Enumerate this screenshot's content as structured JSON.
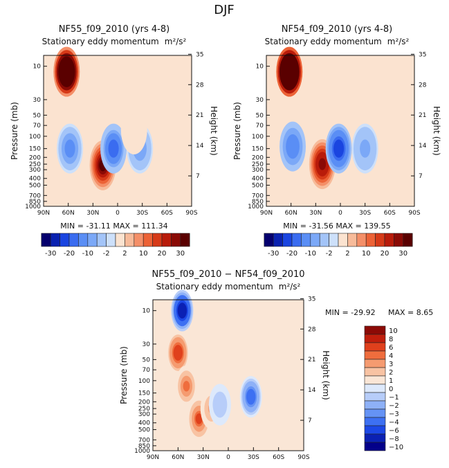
{
  "title": "DJF",
  "chart_data": [
    {
      "type": "heatmap",
      "title": "NF55_f09_2010 (yrs 4-8)",
      "subtitle": "Stationary eddy momentum",
      "units": "m²/s²",
      "xlabel": "",
      "ylabel": "Pressure (mb)",
      "ylabel_right": "Height (km)",
      "x_ticks": [
        "90N",
        "60N",
        "30N",
        "0",
        "30S",
        "60S",
        "90S"
      ],
      "y_ticks": [
        "10",
        "30",
        "50",
        "70",
        "100",
        "150",
        "200",
        "250",
        "300",
        "400",
        "500",
        "700",
        "850",
        "1000"
      ],
      "y_ticks_right": [
        "35",
        "28",
        "21",
        "14",
        "7"
      ],
      "stats": "MIN = -31.11   MAX = 111.34",
      "colorbar_labels": [
        "-30",
        "-20",
        "-10",
        "-2",
        "2",
        "10",
        "20",
        "30"
      ],
      "features": [
        {
          "lat": 62,
          "p": 12,
          "value": 60
        },
        {
          "lat": 18,
          "p": 260,
          "value": 30
        },
        {
          "lat": 5,
          "p": 150,
          "value": -20
        },
        {
          "lat": 58,
          "p": 150,
          "value": -12
        },
        {
          "lat": -27,
          "p": 150,
          "value": -10
        },
        {
          "lat": -20,
          "p": 80,
          "value": 1.5
        }
      ]
    },
    {
      "type": "heatmap",
      "title": "NF54_f09_2010 (yrs 4-8)",
      "subtitle": "Stationary eddy momentum",
      "units": "m²/s²",
      "xlabel": "",
      "ylabel": "Pressure (mb)",
      "ylabel_right": "Height (km)",
      "x_ticks": [
        "90N",
        "60N",
        "30N",
        "0",
        "30S",
        "60S",
        "90S"
      ],
      "y_ticks": [
        "10",
        "30",
        "50",
        "70",
        "100",
        "150",
        "200",
        "250",
        "300",
        "400",
        "500",
        "700",
        "850",
        "1000"
      ],
      "y_ticks_right": [
        "35",
        "28",
        "21",
        "14",
        "7"
      ],
      "stats": "MIN = -31.56   MAX = 139.55",
      "colorbar_labels": [
        "-30",
        "-20",
        "-10",
        "-2",
        "2",
        "10",
        "20",
        "30"
      ],
      "features": [
        {
          "lat": 62,
          "p": 12,
          "value": 70
        },
        {
          "lat": 22,
          "p": 250,
          "value": 28
        },
        {
          "lat": 2,
          "p": 150,
          "value": -25
        },
        {
          "lat": 58,
          "p": 140,
          "value": -15
        },
        {
          "lat": -30,
          "p": 150,
          "value": -8
        }
      ]
    },
    {
      "type": "heatmap",
      "title": "NF55_f09_2010 − NF54_f09_2010",
      "subtitle": "Stationary eddy momentum",
      "units": "m²/s²",
      "xlabel": "",
      "ylabel": "Pressure (mb)",
      "ylabel_right": "Height (km)",
      "x_ticks": [
        "90N",
        "60N",
        "30N",
        "0",
        "30S",
        "60S",
        "90S"
      ],
      "y_ticks": [
        "10",
        "30",
        "50",
        "70",
        "100",
        "150",
        "200",
        "250",
        "300",
        "400",
        "500",
        "700",
        "850",
        "1000"
      ],
      "y_ticks_right": [
        "35",
        "28",
        "21",
        "14",
        "7"
      ],
      "stats_min": "MIN = -29.92",
      "stats_max": "MAX =    8.65",
      "colorbar_labels": [
        "10",
        "8",
        "6",
        "4",
        "3",
        "2",
        "1",
        "0",
        "−1",
        "−2",
        "−3",
        "−4",
        "−6",
        "−8",
        "−10"
      ],
      "features": [
        {
          "lat": 55,
          "p": 10,
          "value": -10
        },
        {
          "lat": 60,
          "p": 40,
          "value": 5
        },
        {
          "lat": 50,
          "p": 120,
          "value": 3
        },
        {
          "lat": 35,
          "p": 350,
          "value": 4
        },
        {
          "lat": 20,
          "p": 250,
          "value": 2
        },
        {
          "lat": -27,
          "p": 170,
          "value": -5
        },
        {
          "lat": 10,
          "p": 220,
          "value": -2
        }
      ]
    }
  ],
  "palette_main": [
    "#05006e",
    "#0a22b0",
    "#1a45e0",
    "#3a6cf0",
    "#5a8ef5",
    "#7ba8f7",
    "#a3c4f8",
    "#cde0fa",
    "#fbe3d0",
    "#f7bb9a",
    "#f48f68",
    "#ec6236",
    "#d63a18",
    "#b81b0a",
    "#8a0a05",
    "#5a0000"
  ],
  "palette_diff": [
    "#03008a",
    "#0b21b4",
    "#1c48e6",
    "#3d70f2",
    "#6593f5",
    "#8eb1f7",
    "#b7cdf9",
    "#dde9fb",
    "#fae6d6",
    "#f8c3a3",
    "#f59b70",
    "#ef6d3d",
    "#e0401c",
    "#c01e0c",
    "#8c0a06"
  ]
}
